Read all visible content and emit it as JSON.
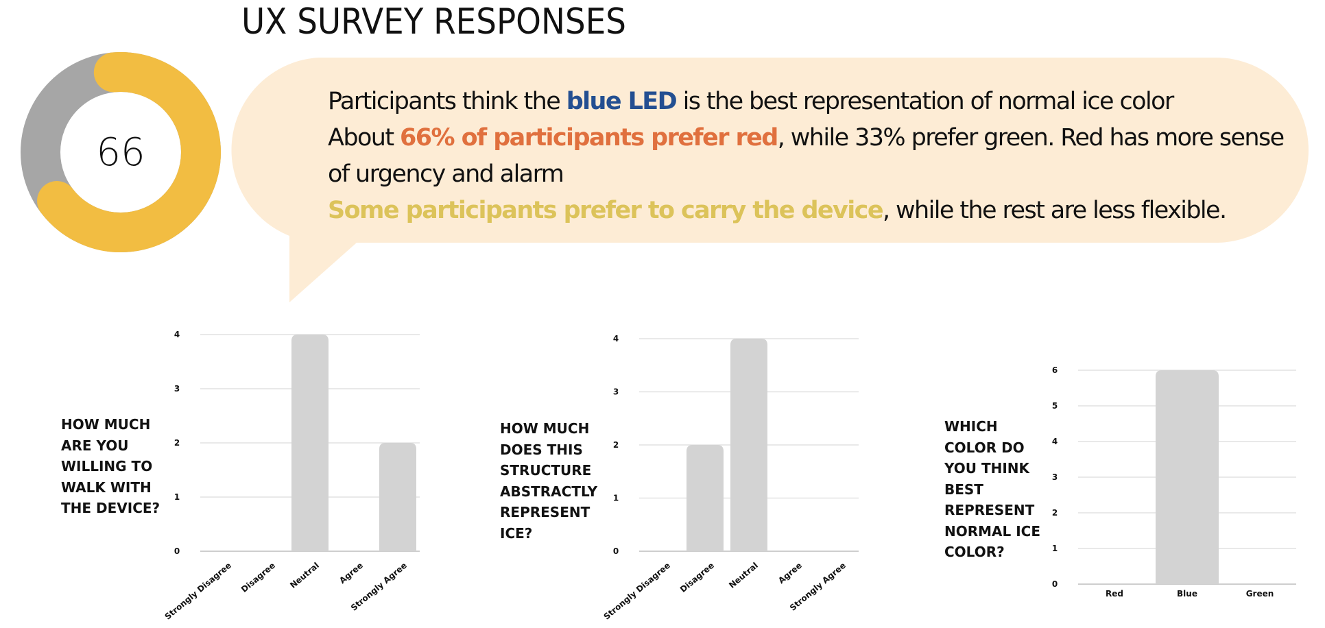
{
  "title": "UX SURVEY RESPONSES",
  "donut": {
    "value_label": "66",
    "percent": 66,
    "fill_color": "#f2bd42",
    "track_color": "#a6a6a6"
  },
  "insights": {
    "bubble_color": "#fdecd5",
    "line1": {
      "pre": "Participants think the ",
      "highlight": "blue LED",
      "post": " is the best representation of normal  ice color",
      "color": "#234f91"
    },
    "line2": {
      "pre": "About ",
      "highlight": "66% of participants prefer red",
      "post": ", while 33% prefer green. Red has more sense of urgency and alarm",
      "color": "#e0703e"
    },
    "line3": {
      "pre": "",
      "highlight": "Some participants prefer to carry the device",
      "post": ", while the rest are less flexible.",
      "color": "#dcc35a"
    }
  },
  "chart_data": [
    {
      "type": "bar",
      "title": "HOW MUCH ARE YOU WILLING TO WALK WITH THE DEVICE?",
      "title_lines": [
        "HOW MUCH",
        "ARE YOU",
        "WILLING TO",
        "WALK WITH",
        "THE DEVICE?"
      ],
      "categories": [
        "Strongly Disagree",
        "Disagree",
        "Neutral",
        "Agree",
        "Strongly Agree"
      ],
      "values": [
        0,
        0,
        4,
        0,
        2
      ],
      "yticks": [
        0,
        1,
        2,
        3,
        4
      ],
      "ylim": [
        0,
        4
      ],
      "grid": true,
      "rotated_labels": true
    },
    {
      "type": "bar",
      "title": "HOW MUCH DOES THIS STRUCTURE ABSTRACTLY REPRESENT ICE?",
      "title_lines": [
        "HOW MUCH",
        "DOES THIS",
        "STRUCTURE",
        "ABSTRACTLY",
        "REPRESENT",
        "ICE?"
      ],
      "categories": [
        "Strongly Disagree",
        "Disagree",
        "Neutral",
        "Agree",
        "Strongly Agree"
      ],
      "values": [
        0,
        2,
        4,
        0,
        0
      ],
      "yticks": [
        0,
        1,
        2,
        3,
        4
      ],
      "ylim": [
        0,
        4
      ],
      "grid": true,
      "rotated_labels": true
    },
    {
      "type": "bar",
      "title": "WHICH COLOR DO YOU THINK BEST REPRESENT NORMAL ICE COLOR?",
      "title_lines": [
        "WHICH",
        "COLOR DO",
        "YOU THINK",
        "BEST",
        "REPRESENT",
        "NORMAL ICE",
        "COLOR?"
      ],
      "categories": [
        "Red",
        "Blue",
        "Green"
      ],
      "values": [
        0,
        6,
        0
      ],
      "yticks": [
        0,
        1,
        2,
        3,
        4,
        5,
        6
      ],
      "ylim": [
        0,
        6
      ],
      "grid": true,
      "rotated_labels": false
    }
  ]
}
